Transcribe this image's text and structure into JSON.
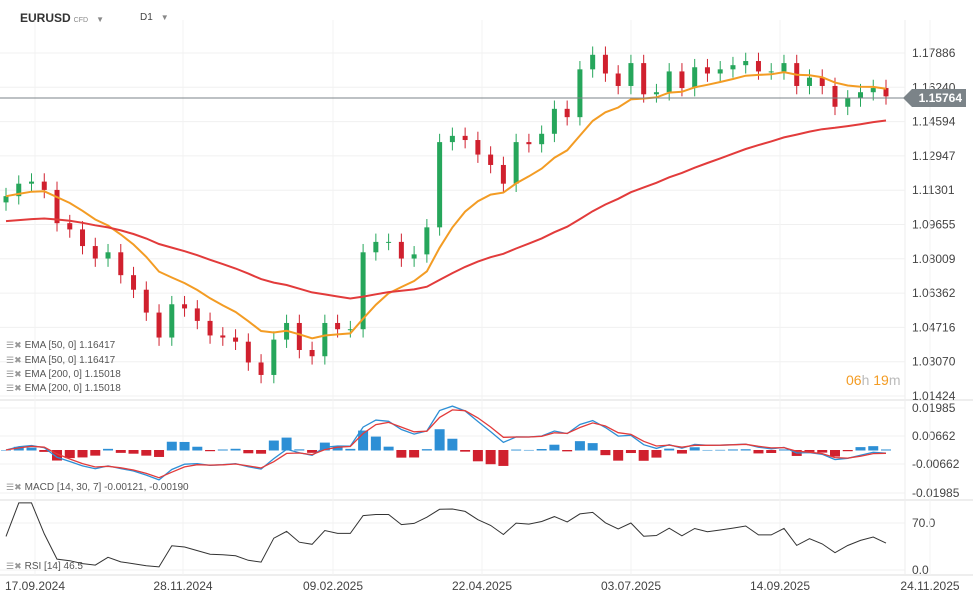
{
  "header": {
    "symbol": "EURUSD",
    "instrument_type": "CFD",
    "timeframe": "D1"
  },
  "last_price": "1.15764",
  "countdown": {
    "hours": "06",
    "h": "h",
    "minutes": "19",
    "m": "m"
  },
  "legend": {
    "ema1": "EMA [50, 0] 1.16417",
    "ema2": "EMA [50, 0] 1.16417",
    "ema3": "EMA [200, 0] 1.15018",
    "ema4": "EMA [200, 0] 1.15018",
    "macd": "MACD [14, 30, 7] -0.00121, -0.00190",
    "rsi": "RSI [14] 46.5"
  },
  "colors": {
    "up": "#26a65b",
    "down": "#d0202e",
    "ema50": "#f39c24",
    "ema200": "#e23b3b",
    "macd_line": "#2d8fd5",
    "signal_line": "#e23b3b",
    "rsi": "#333333"
  },
  "chart_data": {
    "type": "candlestick",
    "price_ticks": [
      "1.17886",
      "1.16240",
      "1.14594",
      "1.12947",
      "1.11301",
      "1.09655",
      "1.08009",
      "1.06362",
      "1.04716",
      "1.03070",
      "1.01424"
    ],
    "macd_ticks": [
      "0.01985",
      "0.00662",
      "-0.00662",
      "-0.01985"
    ],
    "rsi_ticks": [
      "70.0",
      "0.0"
    ],
    "date_ticks": [
      "17.09.2024",
      "28.11.2024",
      "09.02.2025",
      "22.04.2025",
      "03.07.2025",
      "14.09.2025",
      "24.11.2025"
    ],
    "ylim": [
      1.01424,
      1.17886
    ],
    "closes": [
      1.11,
      1.116,
      1.117,
      1.113,
      1.097,
      1.094,
      1.086,
      1.08,
      1.083,
      1.072,
      1.065,
      1.054,
      1.042,
      1.058,
      1.056,
      1.05,
      1.043,
      1.042,
      1.04,
      1.03,
      1.024,
      1.041,
      1.049,
      1.036,
      1.033,
      1.049,
      1.046,
      1.046,
      1.083,
      1.088,
      1.088,
      1.08,
      1.082,
      1.095,
      1.136,
      1.139,
      1.137,
      1.13,
      1.125,
      1.116,
      1.136,
      1.135,
      1.14,
      1.152,
      1.148,
      1.171,
      1.178,
      1.169,
      1.163,
      1.174,
      1.159,
      1.16,
      1.17,
      1.162,
      1.172,
      1.169,
      1.171,
      1.173,
      1.175,
      1.17,
      1.17,
      1.174,
      1.163,
      1.167,
      1.163,
      1.153,
      1.157,
      1.16,
      1.162,
      1.158
    ]
  }
}
